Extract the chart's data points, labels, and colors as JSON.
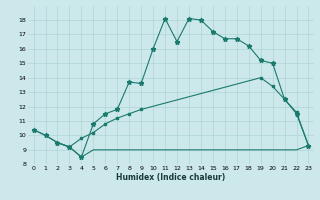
{
  "xlabel": "Humidex (Indice chaleur)",
  "bg_color": "#cce8ea",
  "grid_color": "#afd4d8",
  "line_color": "#1a7a6e",
  "xlim": [
    -0.5,
    23.5
  ],
  "ylim": [
    8,
    19
  ],
  "xticks": [
    0,
    1,
    2,
    3,
    4,
    5,
    6,
    7,
    8,
    9,
    10,
    11,
    12,
    13,
    14,
    15,
    16,
    17,
    18,
    19,
    20,
    21,
    22,
    23
  ],
  "yticks": [
    8,
    9,
    10,
    11,
    12,
    13,
    14,
    15,
    16,
    17,
    18
  ],
  "line1_x": [
    0,
    1,
    2,
    3,
    4,
    5,
    6,
    7,
    8,
    9,
    10,
    11,
    12,
    13,
    14,
    15,
    16,
    17,
    18,
    19,
    20,
    21,
    22,
    23
  ],
  "line1_y": [
    10.4,
    10.0,
    9.5,
    9.2,
    8.5,
    10.8,
    11.5,
    11.8,
    13.7,
    13.6,
    16.0,
    18.1,
    16.5,
    18.1,
    18.0,
    17.2,
    16.7,
    16.7,
    16.2,
    15.2,
    15.0,
    12.5,
    11.5,
    9.3
  ],
  "line2_x": [
    2,
    3,
    4,
    5,
    6,
    7,
    8,
    9,
    19,
    20,
    21,
    22,
    23
  ],
  "line2_y": [
    9.5,
    9.2,
    9.8,
    10.2,
    10.8,
    11.2,
    11.5,
    11.8,
    14.0,
    13.4,
    12.5,
    11.6,
    9.3
  ],
  "line3_x": [
    0,
    1,
    2,
    3,
    4,
    5,
    6,
    7,
    8,
    9,
    10,
    11,
    12,
    13,
    14,
    15,
    16,
    17,
    18,
    19,
    20,
    21,
    22,
    23
  ],
  "line3_y": [
    10.4,
    10.0,
    9.5,
    9.2,
    8.5,
    9.0,
    9.0,
    9.0,
    9.0,
    9.0,
    9.0,
    9.0,
    9.0,
    9.0,
    9.0,
    9.0,
    9.0,
    9.0,
    9.0,
    9.0,
    9.0,
    9.0,
    9.0,
    9.3
  ]
}
